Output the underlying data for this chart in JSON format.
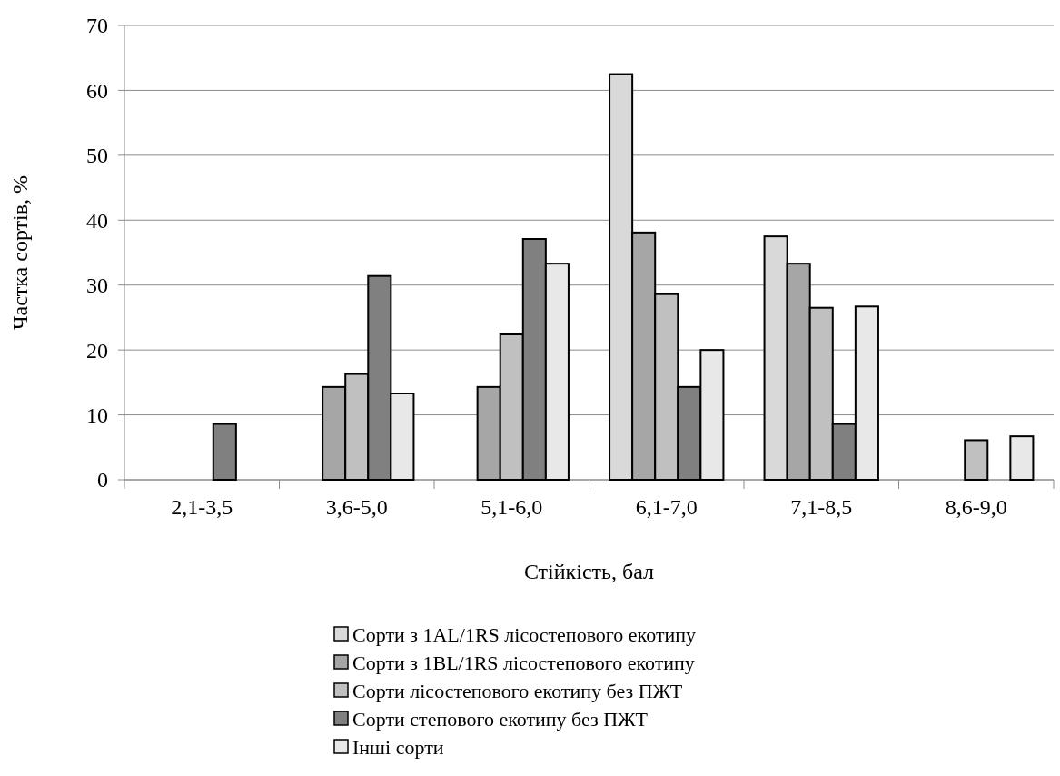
{
  "chart_data": {
    "type": "bar",
    "xlabel": "Стійкість, бал",
    "ylabel": "Частка сортів, %",
    "categories": [
      "2,1-3,5",
      "3,6-5,0",
      "5,1-6,0",
      "6,1-7,0",
      "7,1-8,5",
      "8,6-9,0"
    ],
    "series": [
      {
        "name": "Сорти з 1AL/1RS лісостепового екотипу",
        "color": "#d9d9d9",
        "values": [
          null,
          null,
          null,
          62.5,
          37.5,
          null
        ]
      },
      {
        "name": "Сорти з 1BL/1RS лісостепового екотипу",
        "color": "#a6a6a6",
        "values": [
          null,
          14.3,
          14.3,
          38.1,
          33.3,
          null
        ]
      },
      {
        "name": "Сорти лісостепового екотипу без ПЖТ",
        "color": "#c0c0c0",
        "values": [
          null,
          16.3,
          22.4,
          28.6,
          26.5,
          6.1
        ]
      },
      {
        "name": "Сорти степового екотипу без ПЖТ",
        "color": "#808080",
        "values": [
          8.6,
          31.4,
          37.1,
          14.3,
          8.6,
          null
        ]
      },
      {
        "name": "Інші сорти",
        "color": "#e8e8e8",
        "values": [
          null,
          13.3,
          33.3,
          20.0,
          26.7,
          6.7
        ]
      }
    ],
    "ylim": [
      0,
      70
    ],
    "yticks": [
      0,
      10,
      20,
      30,
      40,
      50,
      60,
      70
    ],
    "grid": "y",
    "legend": "bottom"
  }
}
